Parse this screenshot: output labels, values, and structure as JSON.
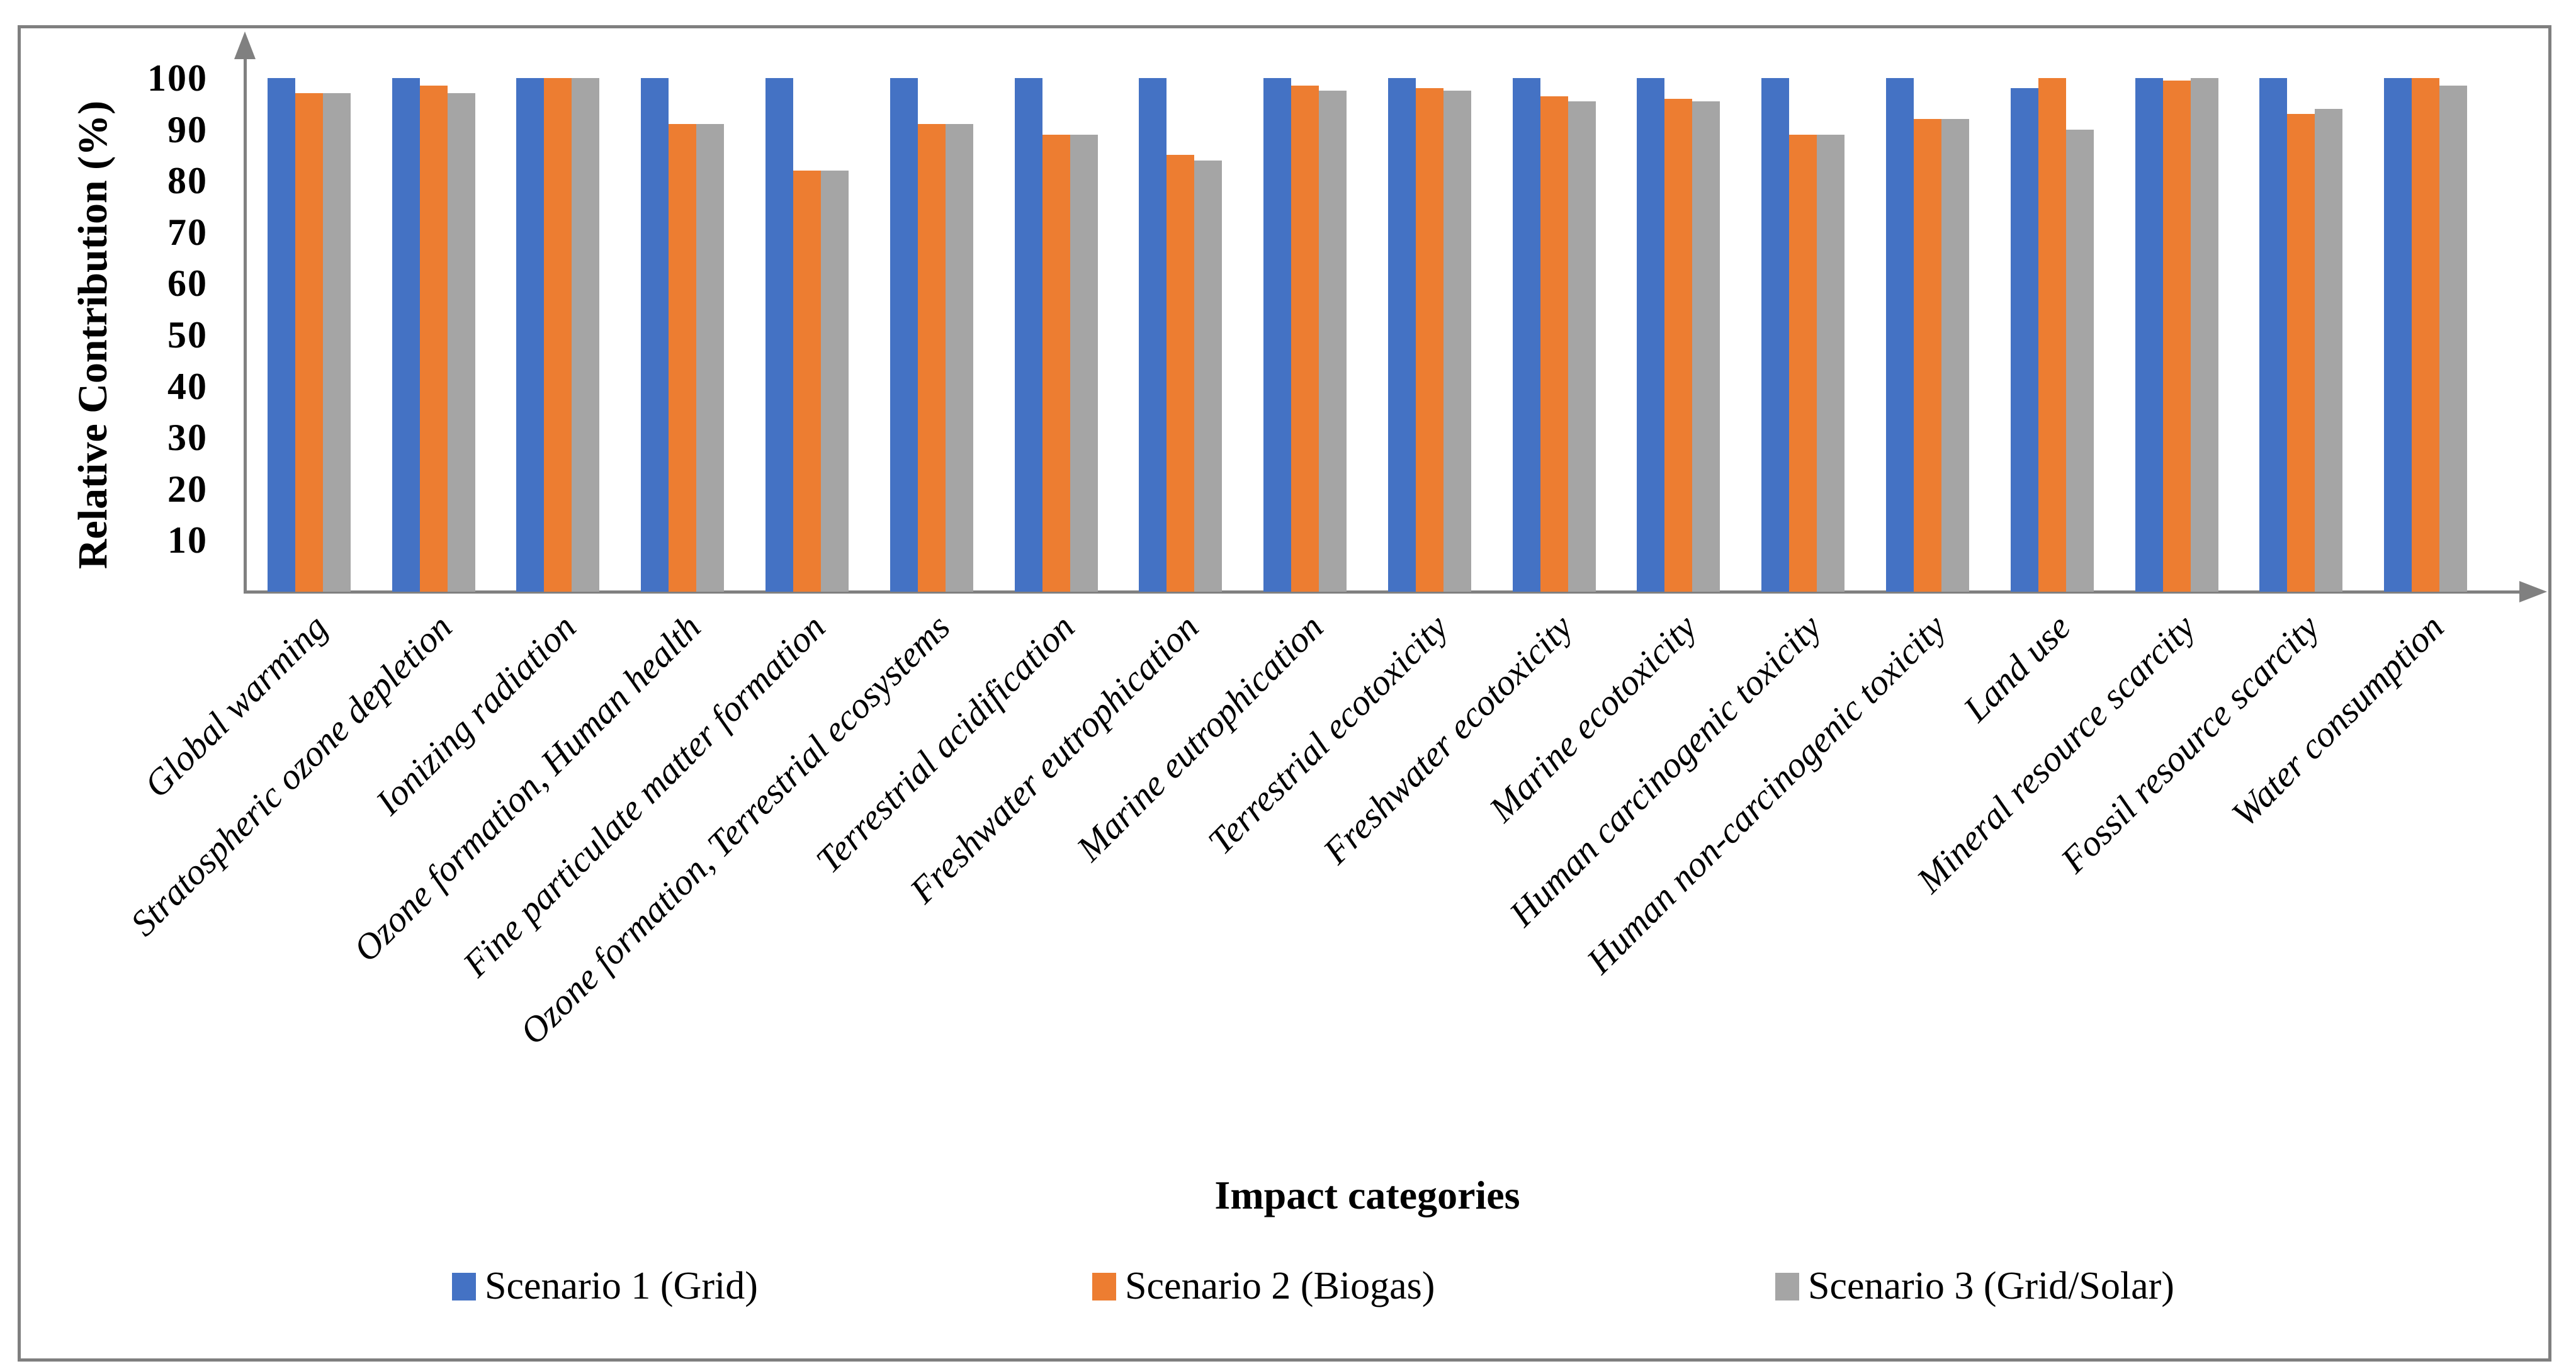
{
  "chart_data": {
    "type": "bar",
    "title": "",
    "xlabel": "Impact categories",
    "ylabel": "Relative Contribution (%)",
    "ylim": [
      0,
      100
    ],
    "yticks": [
      10,
      20,
      30,
      40,
      50,
      60,
      70,
      80,
      90,
      100
    ],
    "grid": false,
    "legend_position": "bottom",
    "categories": [
      "Global warming",
      "Stratospheric ozone depletion",
      "Ionizing radiation",
      "Ozone formation, Human health",
      "Fine particulate matter formation",
      "Ozone formation, Terrestrial ecosystems",
      "Terrestrial acidification",
      "Freshwater eutrophication",
      "Marine eutrophication",
      "Terrestrial ecotoxicity",
      "Freshwater ecotoxicity",
      "Marine ecotoxicity",
      "Human carcinogenic toxicity",
      "Human non-carcinogenic toxicity",
      "Land use",
      "Mineral resource scarcity",
      "Fossil resource scarcity",
      "Water consumption"
    ],
    "series": [
      {
        "name": "Scenario 1 (Grid)",
        "color": "#4472C4",
        "values": [
          100,
          100,
          100,
          100,
          100,
          100,
          100,
          100,
          100,
          100,
          100,
          100,
          100,
          100,
          98,
          100,
          100,
          100
        ]
      },
      {
        "name": "Scenario 2 (Biogas)",
        "color": "#ED7D31",
        "values": [
          97,
          98.5,
          100,
          91,
          82,
          91,
          89,
          85,
          98.5,
          98,
          96.5,
          96,
          89,
          92,
          100,
          99.5,
          93,
          100
        ]
      },
      {
        "name": "Scenario 3 (Grid/Solar)",
        "color": "#A5A5A5",
        "values": [
          97,
          97,
          100,
          91,
          82,
          91,
          89,
          84,
          97.5,
          97.5,
          95.5,
          95.5,
          89,
          92,
          90,
          100,
          94,
          98.5
        ]
      }
    ],
    "axis_color": "#808080"
  }
}
